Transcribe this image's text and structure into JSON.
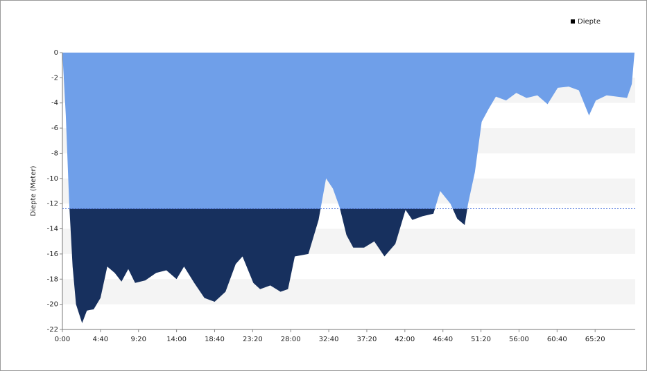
{
  "chart_data": {
    "type": "area",
    "y_label": "Diepte (Meter)",
    "legend": "top-right",
    "grid": "bands",
    "threshold": -12.4,
    "series": [
      {
        "name": "Diepte",
        "color": "#6f9fe9",
        "below_color": "#17305e",
        "x": [
          0,
          25,
          50,
          75,
          100,
          145,
          180,
          230,
          280,
          330,
          385,
          435,
          485,
          535,
          610,
          690,
          765,
          840,
          895,
          970,
          1045,
          1120,
          1200,
          1275,
          1325,
          1405,
          1455,
          1530,
          1605,
          1660,
          1710,
          1810,
          1885,
          1940,
          1990,
          2040,
          2090,
          2140,
          2220,
          2295,
          2370,
          2450,
          2525,
          2575,
          2650,
          2730,
          2780,
          2855,
          2905,
          2960,
          2985,
          3035,
          3085,
          3135,
          3190,
          3265,
          3340,
          3415,
          3495,
          3570,
          3645,
          3725,
          3800,
          3875,
          3925,
          4005,
          4080,
          4155,
          4190,
          4210
        ],
        "values": [
          0,
          -5,
          -12,
          -17,
          -20,
          -21.5,
          -20.5,
          -20.4,
          -19.5,
          -17,
          -17.5,
          -18.2,
          -17.2,
          -18.3,
          -18.1,
          -17.5,
          -17.3,
          -18,
          -17,
          -18.3,
          -19.5,
          -19.8,
          -19,
          -16.8,
          -16.2,
          -18.3,
          -18.8,
          -18.5,
          -19,
          -18.8,
          -16.2,
          -16,
          -13.3,
          -10,
          -10.8,
          -12.3,
          -14.5,
          -15.5,
          -15.5,
          -15,
          -16.2,
          -15.2,
          -12.5,
          -13.3,
          -13,
          -12.8,
          -11,
          -12,
          -13.2,
          -13.7,
          -12,
          -9.5,
          -5.5,
          -4.5,
          -3.5,
          -3.8,
          -3.2,
          -3.6,
          -3.4,
          -4.1,
          -2.8,
          -2.7,
          -3,
          -5,
          -3.8,
          -3.4,
          -3.5,
          -3.6,
          -2.5,
          0
        ]
      }
    ],
    "xlim": [
      0,
      4215
    ],
    "xticks": [
      {
        "value": 0,
        "label": "0:00"
      },
      {
        "value": 280,
        "label": "4:40"
      },
      {
        "value": 560,
        "label": "9:20"
      },
      {
        "value": 840,
        "label": "14:00"
      },
      {
        "value": 1120,
        "label": "18:40"
      },
      {
        "value": 1400,
        "label": "23:20"
      },
      {
        "value": 1680,
        "label": "28:00"
      },
      {
        "value": 1960,
        "label": "32:40"
      },
      {
        "value": 2240,
        "label": "37:20"
      },
      {
        "value": 2520,
        "label": "42:00"
      },
      {
        "value": 2800,
        "label": "46:40"
      },
      {
        "value": 3080,
        "label": "51:20"
      },
      {
        "value": 3360,
        "label": "56:00"
      },
      {
        "value": 3640,
        "label": "60:40"
      },
      {
        "value": 3920,
        "label": "65:20"
      }
    ],
    "ylim": [
      -22,
      0
    ],
    "yticks": [
      0,
      -2,
      -4,
      -6,
      -8,
      -10,
      -12,
      -14,
      -16,
      -18,
      -20,
      -22
    ]
  }
}
